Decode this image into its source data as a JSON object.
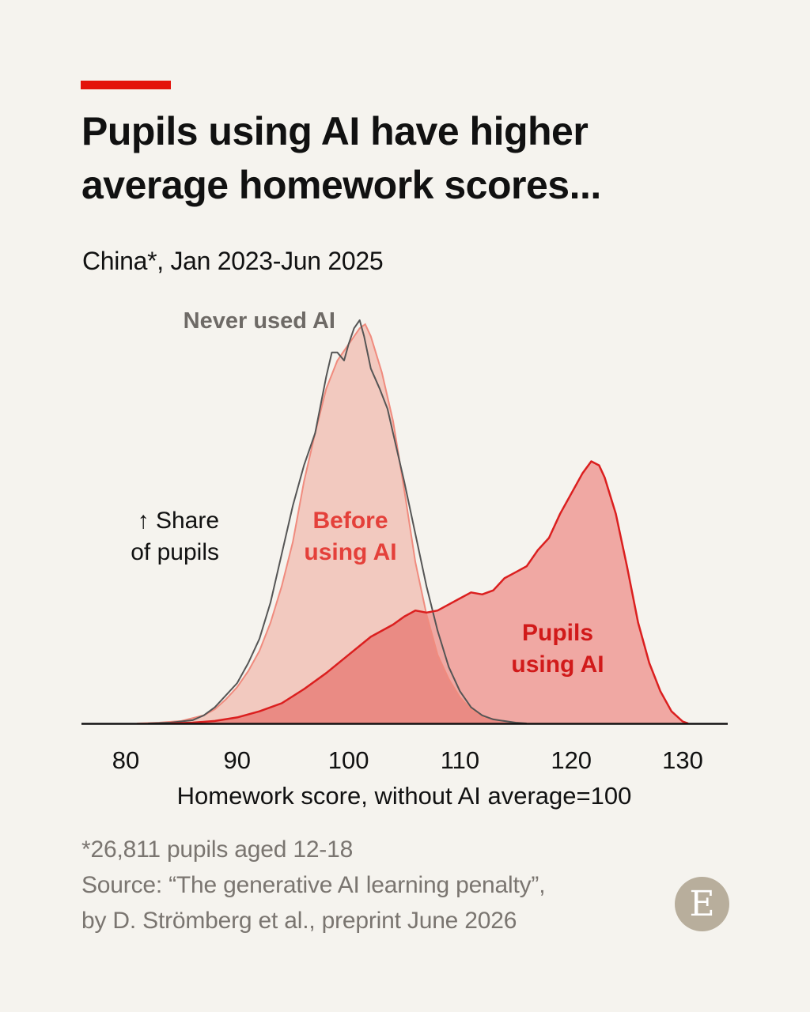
{
  "header": {
    "title_line1": "Pupils using AI have higher",
    "title_line2": "average homework scores...",
    "subtitle": "China*, Jan 2023-Jun 2025"
  },
  "colors": {
    "accent": "#e3120b",
    "never_used_line": "#555555",
    "before_fill": "#f2c9bf",
    "before_line": "#f08b7e",
    "using_fill": "#efa09a",
    "using_overlap_fill": "#ea8b84",
    "using_line": "#db1f1f"
  },
  "chart_data": {
    "type": "area",
    "title": "Pupils using AI have higher average homework scores...",
    "subtitle": "China*, Jan 2023-Jun 2025",
    "xlabel": "Homework score, without AI average=100",
    "ylabel": "↑ Share of pupils",
    "xlim": [
      76,
      132
    ],
    "x_ticks": [
      80,
      90,
      100,
      110,
      120,
      130
    ],
    "y_scale": "relative share (unlabelled), peak of Never used AI = 1.0",
    "ylim": [
      0,
      1.05
    ],
    "grid": false,
    "legend": "direct labels",
    "series": [
      {
        "name": "Never used AI",
        "style": "line",
        "points": [
          [
            82,
            0
          ],
          [
            84,
            0.002
          ],
          [
            86,
            0.008
          ],
          [
            87,
            0.02
          ],
          [
            88,
            0.04
          ],
          [
            89,
            0.07
          ],
          [
            90,
            0.1
          ],
          [
            91,
            0.15
          ],
          [
            92,
            0.21
          ],
          [
            93,
            0.3
          ],
          [
            94,
            0.42
          ],
          [
            95,
            0.54
          ],
          [
            96,
            0.64
          ],
          [
            97,
            0.72
          ],
          [
            98,
            0.86
          ],
          [
            98.5,
            0.92
          ],
          [
            99,
            0.92
          ],
          [
            99.6,
            0.9
          ],
          [
            100,
            0.94
          ],
          [
            100.5,
            0.98
          ],
          [
            101,
            1.0
          ],
          [
            101.4,
            0.96
          ],
          [
            102,
            0.88
          ],
          [
            102.8,
            0.83
          ],
          [
            103.5,
            0.78
          ],
          [
            104,
            0.72
          ],
          [
            105,
            0.6
          ],
          [
            106,
            0.47
          ],
          [
            107,
            0.34
          ],
          [
            108,
            0.23
          ],
          [
            109,
            0.14
          ],
          [
            110,
            0.08
          ],
          [
            111,
            0.04
          ],
          [
            112,
            0.02
          ],
          [
            113,
            0.01
          ],
          [
            115,
            0.002
          ],
          [
            116,
            0
          ]
        ]
      },
      {
        "name": "Before using AI",
        "style": "filled area",
        "points": [
          [
            81,
            0
          ],
          [
            83,
            0.002
          ],
          [
            85,
            0.006
          ],
          [
            87,
            0.02
          ],
          [
            88,
            0.035
          ],
          [
            89,
            0.06
          ],
          [
            90,
            0.09
          ],
          [
            91,
            0.13
          ],
          [
            92,
            0.18
          ],
          [
            93,
            0.25
          ],
          [
            94,
            0.34
          ],
          [
            95,
            0.45
          ],
          [
            96,
            0.6
          ],
          [
            97,
            0.72
          ],
          [
            98,
            0.83
          ],
          [
            99,
            0.9
          ],
          [
            100,
            0.94
          ],
          [
            101,
            0.98
          ],
          [
            101.5,
            0.99
          ],
          [
            102,
            0.96
          ],
          [
            103,
            0.87
          ],
          [
            104,
            0.75
          ],
          [
            105,
            0.58
          ],
          [
            106,
            0.4
          ],
          [
            107,
            0.27
          ],
          [
            108,
            0.17
          ],
          [
            109,
            0.11
          ],
          [
            110,
            0.065
          ],
          [
            111,
            0.035
          ],
          [
            112,
            0.017
          ],
          [
            114,
            0.005
          ],
          [
            116,
            0
          ]
        ]
      },
      {
        "name": "Pupils using AI",
        "style": "filled area with line",
        "points": [
          [
            84,
            0
          ],
          [
            86,
            0.002
          ],
          [
            88,
            0.006
          ],
          [
            90,
            0.015
          ],
          [
            92,
            0.03
          ],
          [
            94,
            0.05
          ],
          [
            96,
            0.085
          ],
          [
            98,
            0.125
          ],
          [
            100,
            0.17
          ],
          [
            102,
            0.215
          ],
          [
            104,
            0.245
          ],
          [
            105,
            0.265
          ],
          [
            106,
            0.28
          ],
          [
            107,
            0.275
          ],
          [
            108,
            0.28
          ],
          [
            110,
            0.31
          ],
          [
            111,
            0.325
          ],
          [
            112,
            0.32
          ],
          [
            113,
            0.33
          ],
          [
            114,
            0.36
          ],
          [
            115,
            0.375
          ],
          [
            116,
            0.39
          ],
          [
            117,
            0.43
          ],
          [
            118,
            0.46
          ],
          [
            119,
            0.52
          ],
          [
            120,
            0.57
          ],
          [
            121,
            0.62
          ],
          [
            121.8,
            0.65
          ],
          [
            122.5,
            0.64
          ],
          [
            123,
            0.61
          ],
          [
            124,
            0.52
          ],
          [
            125,
            0.39
          ],
          [
            126,
            0.25
          ],
          [
            127,
            0.15
          ],
          [
            128,
            0.08
          ],
          [
            129,
            0.03
          ],
          [
            130,
            0.005
          ],
          [
            130.5,
            0
          ]
        ]
      }
    ],
    "annotations": {
      "never_used": "Never used AI",
      "before_line1": "Before",
      "before_line2": "using AI",
      "using_line1": "Pupils",
      "using_line2": "using AI",
      "ylabel_line1": "↑ Share",
      "ylabel_line2": "of pupils"
    }
  },
  "footer": {
    "note": "*26,811 pupils aged 12-18",
    "source_line1": "Source: “The generative AI learning penalty”,",
    "source_line2": "by D. Strömberg et al., preprint June 2026",
    "logo_letter": "E",
    "logo_icon": "economist-logo-icon"
  }
}
